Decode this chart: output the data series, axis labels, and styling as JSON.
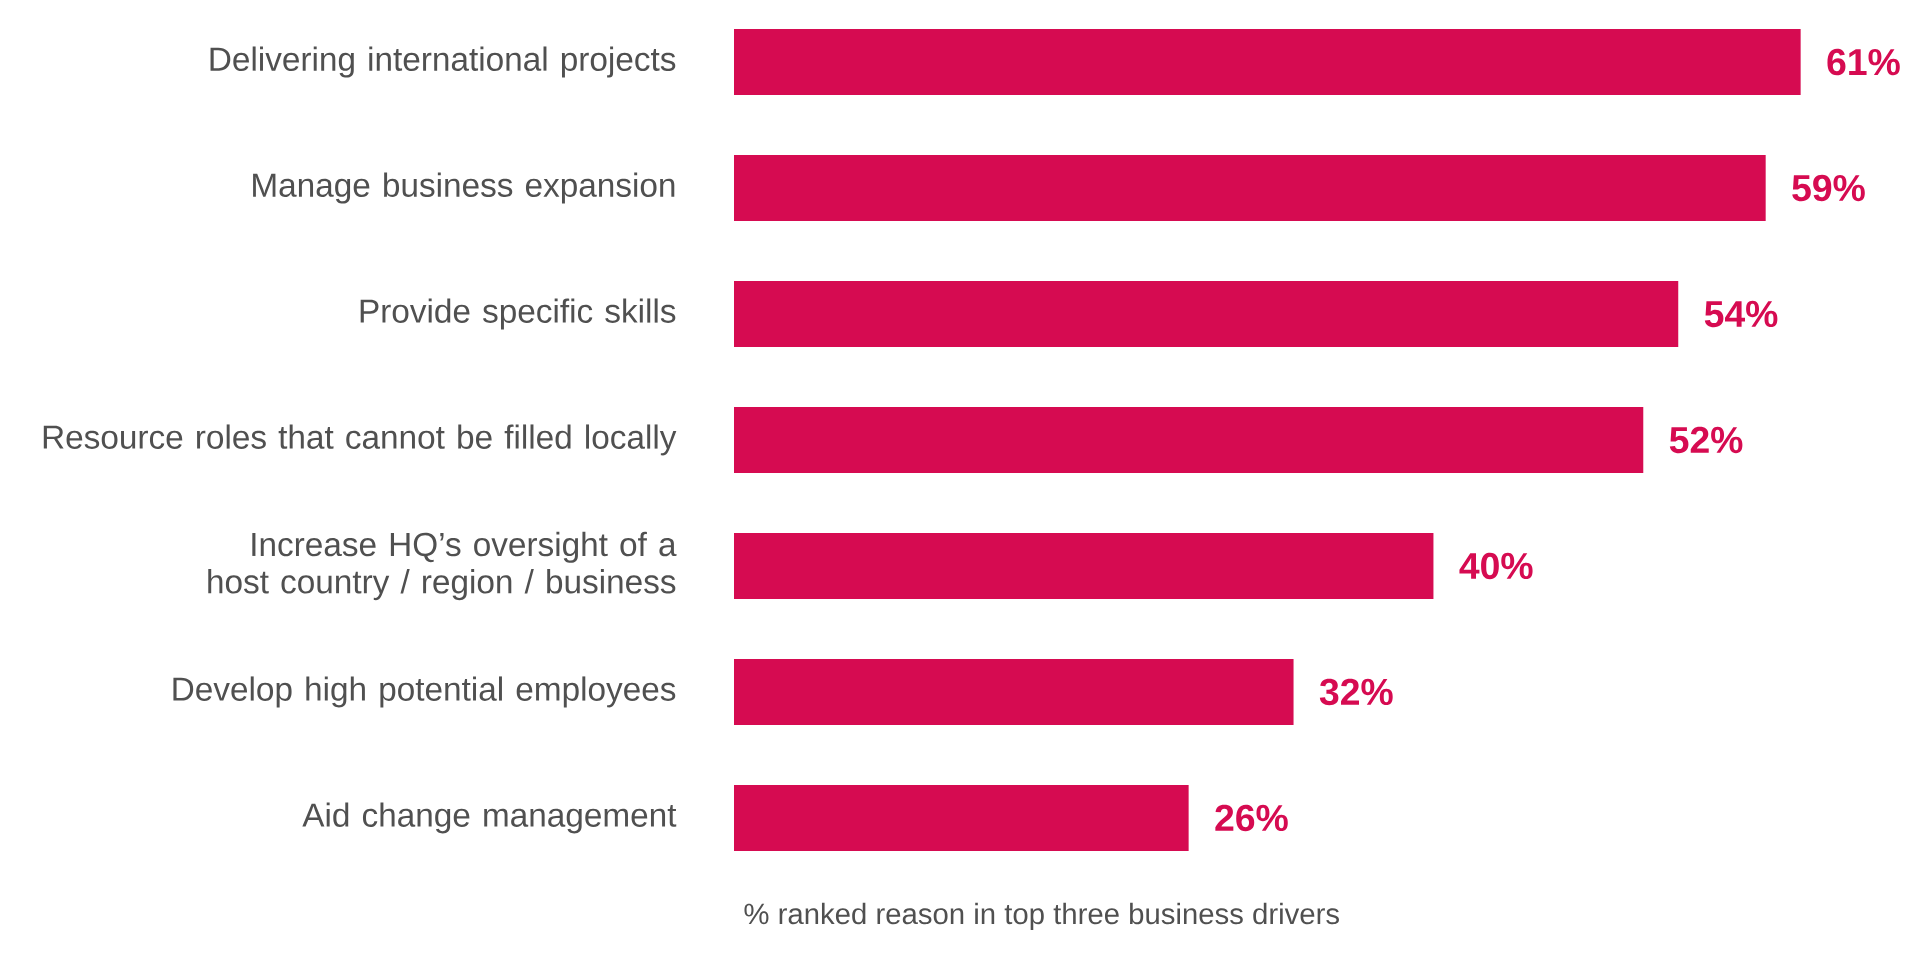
{
  "chart_data": {
    "type": "bar",
    "orientation": "horizontal",
    "xlabel": "% ranked reason in top three business drivers",
    "categories": [
      "Delivering international projects",
      "Manage business expansion",
      "Provide specific skills",
      "Resource roles that cannot be filled locally",
      "Increase HQ’s oversight of a host country / region / business",
      "Develop high potential employees",
      "Aid change management"
    ],
    "values": [
      61,
      59,
      54,
      52,
      40,
      32,
      26
    ],
    "value_labels": [
      "61%",
      "59%",
      "54%",
      "52%",
      "40%",
      "32%",
      "26%"
    ],
    "color": "#d60b51"
  }
}
